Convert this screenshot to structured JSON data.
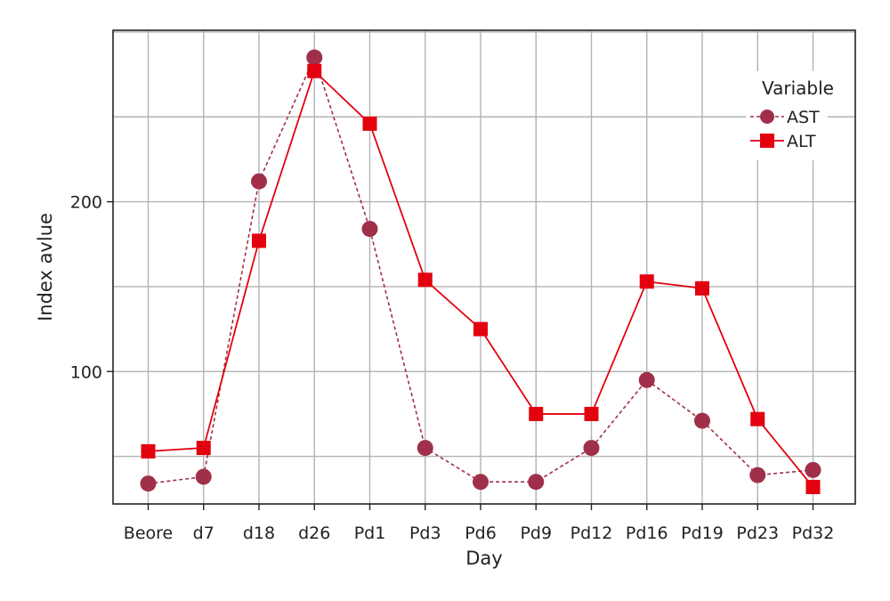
{
  "chart_data": {
    "type": "line",
    "xlabel": "Day",
    "ylabel": "Index avlue",
    "categories": [
      "Beore",
      "d7",
      "d18",
      "d26",
      "Pd1",
      "Pd3",
      "Pd6",
      "Pd9",
      "Pd12",
      "Pd16",
      "Pd19",
      "Pd23",
      "Pd32"
    ],
    "ylim": [
      22,
      301
    ],
    "yticks": [
      100,
      200
    ],
    "grid": true,
    "legend": {
      "title": "Variable",
      "placement": "top-right"
    },
    "series": [
      {
        "name": "AST",
        "marker": "circle",
        "line_style": "dashed",
        "color": "#A0304A",
        "values": [
          34,
          38,
          212,
          285,
          184,
          55,
          35,
          35,
          55,
          95,
          71,
          39,
          42
        ]
      },
      {
        "name": "ALT",
        "marker": "square",
        "line_style": "solid",
        "color": "#E3000F",
        "values": [
          53,
          55,
          177,
          277,
          246,
          154,
          125,
          75,
          75,
          153,
          149,
          72,
          32
        ]
      }
    ]
  }
}
